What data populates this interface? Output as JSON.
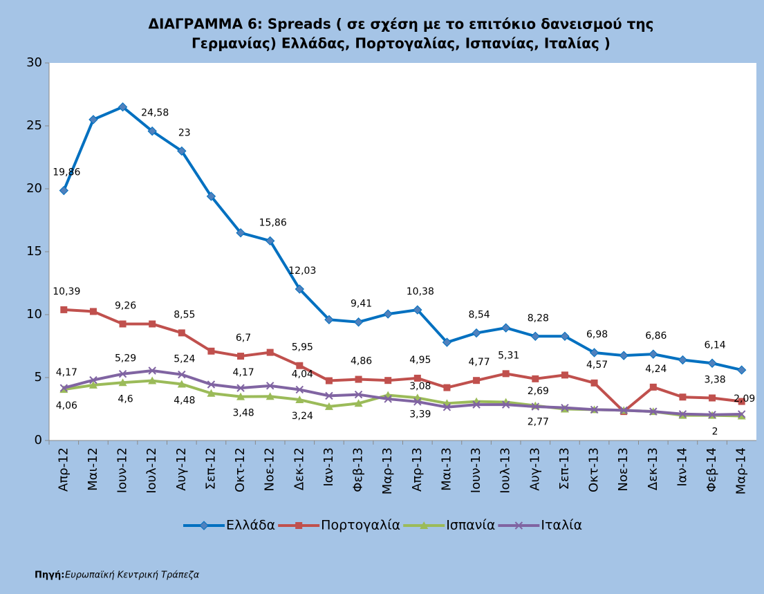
{
  "chart_data": {
    "type": "line",
    "title": [
      "ΔΙΑΓΡΑΜΜΑ 6: Spreads ( σε σχέση με το  επιτόκιο δανεισμού της",
      "Γερμανίας)  Ελλάδας, Πορτογαλίας, Ισπανίας, Ιταλίας )"
    ],
    "categories": [
      "Απρ-12",
      "Μαι-12",
      "Ιουν-12",
      "Ιουλ-12",
      "Αυγ-12",
      "Σεπ-12",
      "Οκτ-12",
      "Νοε-12",
      "Δεκ-12",
      "Ιαν-13",
      "Φεβ-13",
      "Μαρ-13",
      "Απρ-13",
      "Μαι-13",
      "Ιουν-13",
      "Ιουλ-13",
      "Αυγ-13",
      "Σεπ-13",
      "Οκτ-13",
      "Νοε-13",
      "Δεκ-13",
      "Ιαν-14",
      "Φεβ-14",
      "Μαρ-14"
    ],
    "series": [
      {
        "name": "Ελλάδα",
        "color": "#0070c0",
        "marker": "diamond",
        "values": [
          19.86,
          25.5,
          26.5,
          24.58,
          23,
          19.4,
          16.5,
          15.86,
          12.03,
          9.6,
          9.41,
          10.05,
          10.38,
          7.8,
          8.54,
          8.95,
          8.28,
          8.28,
          6.98,
          6.75,
          6.86,
          6.4,
          6.14,
          5.6
        ],
        "value_labels": [
          "19,86",
          null,
          null,
          "24,58",
          "23",
          null,
          null,
          "15,86",
          "12,03",
          null,
          "9,41",
          null,
          "10,38",
          null,
          "8,54",
          null,
          "8,28",
          null,
          "6,98",
          null,
          "6,86",
          null,
          "6,14",
          null
        ]
      },
      {
        "name": "Πορτογαλία",
        "color": "#c0504d",
        "marker": "square",
        "values": [
          10.39,
          10.25,
          9.26,
          9.26,
          8.55,
          7.1,
          6.7,
          7.0,
          5.95,
          4.75,
          4.86,
          4.77,
          4.95,
          4.2,
          4.77,
          5.31,
          4.9,
          5.2,
          4.57,
          2.3,
          4.24,
          3.45,
          3.38,
          3.1
        ],
        "value_labels": [
          "10,39",
          null,
          "9,26",
          null,
          "8,55",
          null,
          "6,7",
          null,
          "5,95",
          null,
          "4,86",
          null,
          "4,95",
          null,
          "4,77",
          "5,31",
          null,
          null,
          "4,57",
          null,
          "4,24",
          null,
          "3,38",
          null
        ]
      },
      {
        "name": "Ισπανία",
        "color": "#9bbb59",
        "marker": "triangle",
        "values": [
          4.06,
          4.4,
          4.6,
          4.75,
          4.48,
          3.75,
          3.48,
          3.5,
          3.24,
          2.7,
          2.95,
          3.6,
          3.39,
          2.95,
          3.1,
          3.05,
          2.77,
          2.5,
          2.45,
          2.4,
          2.3,
          2.0,
          2,
          1.95
        ],
        "value_labels": [
          "4,06",
          null,
          "4,6",
          null,
          "4,48",
          null,
          "3,48",
          null,
          "3,24",
          null,
          null,
          null,
          "3,39",
          null,
          null,
          null,
          "2,77",
          null,
          null,
          null,
          null,
          null,
          "2",
          null
        ]
      },
      {
        "name": "Ιταλία",
        "color": "#8064a2",
        "marker": "x",
        "values": [
          4.17,
          4.8,
          5.29,
          5.55,
          5.24,
          4.45,
          4.17,
          4.35,
          4.04,
          3.55,
          3.65,
          3.3,
          3.08,
          2.65,
          2.85,
          2.85,
          2.69,
          2.6,
          2.45,
          2.4,
          2.3,
          2.1,
          2.05,
          2.09
        ],
        "value_labels": [
          "4,17",
          null,
          "5,29",
          null,
          "5,24",
          null,
          "4,17",
          null,
          "4,04",
          null,
          null,
          null,
          "3,08",
          null,
          null,
          null,
          "2,69",
          null,
          null,
          null,
          null,
          null,
          null,
          "2,09"
        ]
      }
    ],
    "ylim": [
      0,
      30
    ],
    "yticks": [
      0,
      5,
      10,
      15,
      20,
      25,
      30
    ],
    "grid": false,
    "legend": "bottom",
    "source_label": "Πηγή:",
    "source": "Ευρωπαϊκή Κεντρική Τράπεζα"
  }
}
